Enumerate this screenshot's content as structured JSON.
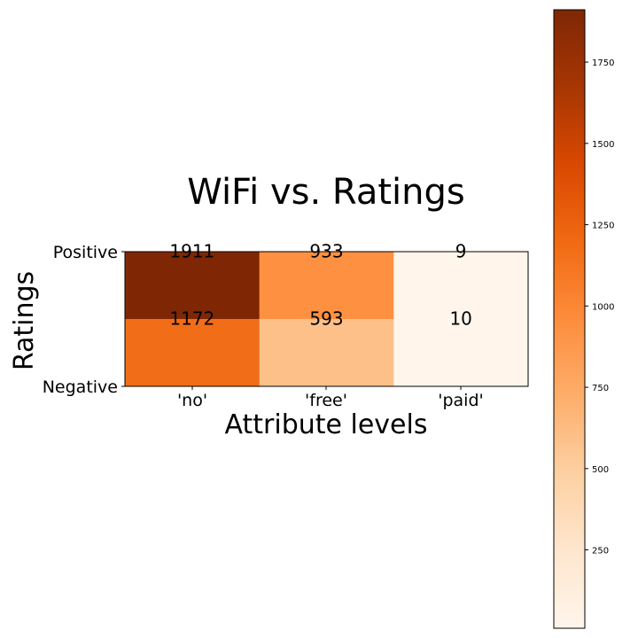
{
  "chart_data": {
    "type": "heatmap",
    "title": "WiFi vs. Ratings",
    "xlabel": "Attribute levels",
    "ylabel": "Ratings",
    "x_categories": [
      "'no'",
      "'free'",
      "'paid'"
    ],
    "y_categories": [
      "Positive",
      "Negative"
    ],
    "values": [
      [
        1911,
        933,
        9
      ],
      [
        1172,
        593,
        10
      ]
    ],
    "colormap": "Oranges",
    "colorbar": {
      "range": [
        9,
        1911
      ],
      "ticks": [
        250,
        500,
        750,
        1000,
        1250,
        1500,
        1750
      ],
      "tick_labels": [
        "250",
        "500",
        "750",
        "1000",
        "1250",
        "1500",
        "1750"
      ]
    },
    "grid": false
  }
}
